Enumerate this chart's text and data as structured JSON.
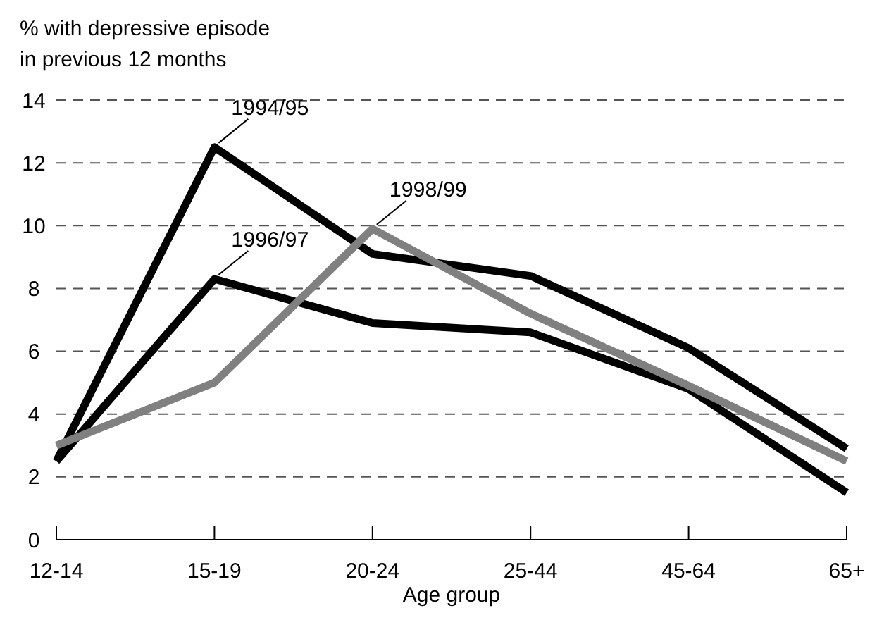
{
  "chart_data": {
    "type": "line",
    "ylabel": "% with depressive episode\nin previous 12 months",
    "xlabel": "Age group",
    "categories": [
      "12-14",
      "15-19",
      "20-24",
      "25-44",
      "45-64",
      "65+"
    ],
    "series": [
      {
        "name": "1994/95",
        "color": "#000000",
        "values": [
          2.5,
          12.5,
          9.1,
          8.4,
          6.1,
          2.9
        ]
      },
      {
        "name": "1996/97",
        "color": "#000000",
        "values": [
          2.5,
          8.3,
          6.9,
          6.6,
          4.8,
          1.5
        ]
      },
      {
        "name": "1998/99",
        "color": "#808080",
        "values": [
          3.0,
          5.0,
          9.9,
          7.2,
          4.9,
          2.5
        ]
      }
    ],
    "ylim": [
      0,
      14
    ],
    "yticks": [
      0,
      2,
      4,
      6,
      8,
      10,
      12,
      14
    ],
    "grid": "y",
    "marker": "none",
    "line_style": "solid"
  }
}
